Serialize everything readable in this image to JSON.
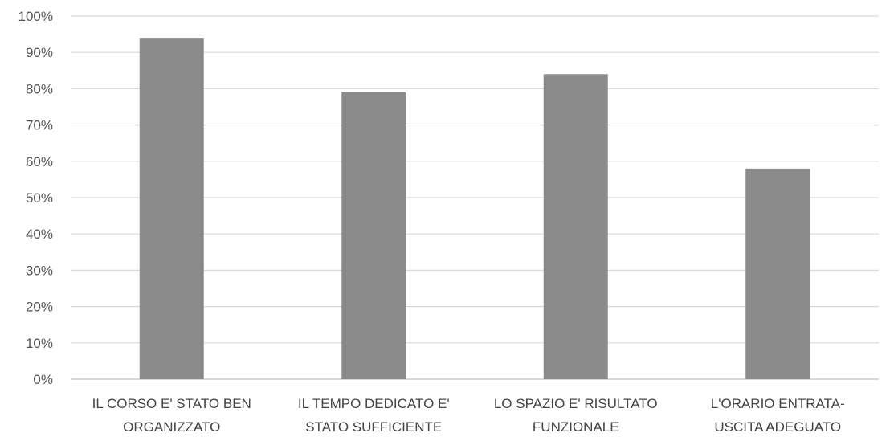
{
  "chart_data": {
    "type": "bar",
    "title": "",
    "xlabel": "",
    "ylabel": "",
    "categories": [
      [
        "IL CORSO E' STATO BEN",
        "ORGANIZZATO"
      ],
      [
        "IL TEMPO DEDICATO E'",
        "STATO SUFFICIENTE"
      ],
      [
        "LO SPAZIO E' RISULTATO",
        "FUNZIONALE"
      ],
      [
        "L'ORARIO ENTRATA-",
        "USCITA ADEGUATO"
      ]
    ],
    "values": [
      94,
      79,
      84,
      58
    ],
    "ylim": [
      0,
      100
    ],
    "yticks": [
      "0%",
      "10%",
      "20%",
      "30%",
      "40%",
      "50%",
      "60%",
      "70%",
      "80%",
      "90%",
      "100%"
    ],
    "grid": true,
    "legend": "none",
    "colors": {
      "bar": "#8a8a8a",
      "grid": "#d9d9d9",
      "axis": "#bfbfbf"
    }
  }
}
